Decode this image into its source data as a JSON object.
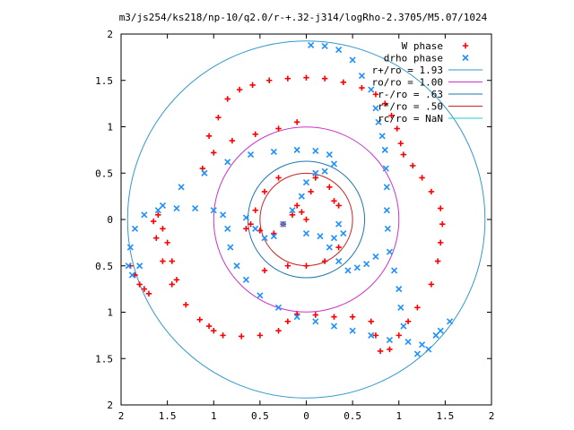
{
  "chart_data": {
    "type": "scatter",
    "title": "m3/js254/ks218/np-10/q2.0/r-+.32-j314/logRho-2.3705/M5.07/1024",
    "xlim": [
      -2,
      2
    ],
    "ylim": [
      -2,
      2
    ],
    "x_ticks": [
      "2",
      "1.5",
      "1",
      "0.5",
      "0",
      "0.5",
      "1",
      "1.5",
      "2"
    ],
    "x_tick_values": [
      -2,
      -1.5,
      -1,
      -0.5,
      0,
      0.5,
      1,
      1.5,
      2
    ],
    "y_ticks": [
      "2",
      "1.5",
      "1",
      "0.5",
      "0",
      "0.5",
      "1",
      "1.5",
      "2"
    ],
    "y_tick_values": [
      2,
      1.5,
      1,
      0.5,
      0,
      -0.5,
      -1,
      -1.5,
      -2
    ],
    "grid": false,
    "legend_position": "top-right",
    "legend": [
      {
        "label": "W phase",
        "kind": "point",
        "marker": "+",
        "color": "#ff0000"
      },
      {
        "label": "drho phase",
        "kind": "point",
        "marker": "x",
        "color": "#1e90ff"
      },
      {
        "label": "r+/ro = 1.93",
        "kind": "circle",
        "radius": 1.93,
        "color": "#3399cc"
      },
      {
        "label": "ro/ro = 1.00",
        "kind": "circle",
        "radius": 1.0,
        "color": "#cc33cc"
      },
      {
        "label": "r-/ro = .63",
        "kind": "circle",
        "radius": 0.63,
        "color": "#1f77b4"
      },
      {
        "label": "r*/ro = .50",
        "kind": "circle",
        "radius": 0.5,
        "color": "#cc2222"
      },
      {
        "label": "rc/ro = NaN",
        "kind": "line",
        "color": "#22cccc"
      }
    ],
    "series": [
      {
        "name": "W phase",
        "color": "#ff0000",
        "points": [
          [
            -0.1,
            1.05
          ],
          [
            -0.3,
            0.98
          ],
          [
            -0.55,
            0.92
          ],
          [
            -0.8,
            0.85
          ],
          [
            -1.0,
            0.72
          ],
          [
            -1.12,
            0.55
          ],
          [
            -1.05,
            0.9
          ],
          [
            -0.95,
            1.1
          ],
          [
            -0.85,
            1.3
          ],
          [
            -0.72,
            1.4
          ],
          [
            -0.58,
            1.45
          ],
          [
            -0.4,
            1.5
          ],
          [
            -0.2,
            1.52
          ],
          [
            0.0,
            1.53
          ],
          [
            0.2,
            1.52
          ],
          [
            0.4,
            1.48
          ],
          [
            0.6,
            1.42
          ],
          [
            0.75,
            1.35
          ],
          [
            0.85,
            1.25
          ],
          [
            0.92,
            1.12
          ],
          [
            0.98,
            0.98
          ],
          [
            1.02,
            0.82
          ],
          [
            1.05,
            0.7
          ],
          [
            1.15,
            0.58
          ],
          [
            1.25,
            0.45
          ],
          [
            1.35,
            0.3
          ],
          [
            1.45,
            0.12
          ],
          [
            1.47,
            -0.05
          ],
          [
            1.45,
            -0.25
          ],
          [
            1.42,
            -0.45
          ],
          [
            1.35,
            -0.7
          ],
          [
            1.2,
            -0.95
          ],
          [
            1.1,
            -1.1
          ],
          [
            1.0,
            -1.25
          ],
          [
            0.9,
            -1.4
          ],
          [
            0.8,
            -1.42
          ],
          [
            0.75,
            -1.25
          ],
          [
            0.7,
            -1.1
          ],
          [
            0.5,
            -1.05
          ],
          [
            0.3,
            -1.05
          ],
          [
            0.1,
            -1.03
          ],
          [
            -0.1,
            -1.02
          ],
          [
            -0.2,
            -1.1
          ],
          [
            -0.3,
            -1.2
          ],
          [
            -0.5,
            -1.25
          ],
          [
            -0.7,
            -1.26
          ],
          [
            -0.9,
            -1.25
          ],
          [
            -1.0,
            -1.2
          ],
          [
            -1.05,
            -1.15
          ],
          [
            -1.15,
            -1.08
          ],
          [
            -1.3,
            -0.92
          ],
          [
            -1.45,
            -0.7
          ],
          [
            -1.55,
            -0.45
          ],
          [
            -1.62,
            -0.2
          ],
          [
            -1.65,
            -0.02
          ],
          [
            -1.6,
            0.05
          ],
          [
            -1.55,
            -0.1
          ],
          [
            -1.5,
            -0.25
          ],
          [
            -1.45,
            -0.45
          ],
          [
            -1.4,
            -0.65
          ],
          [
            -1.9,
            -0.5
          ],
          [
            -1.85,
            -0.6
          ],
          [
            -1.8,
            -0.7
          ],
          [
            -1.75,
            -0.75
          ],
          [
            -1.7,
            -0.8
          ],
          [
            -0.3,
            0.45
          ],
          [
            -0.45,
            0.3
          ],
          [
            -0.55,
            0.1
          ],
          [
            -0.6,
            -0.05
          ],
          [
            -0.65,
            -0.1
          ],
          [
            -0.5,
            -0.12
          ],
          [
            -0.35,
            -0.15
          ],
          [
            -0.25,
            -0.05
          ],
          [
            -0.15,
            0.05
          ],
          [
            -0.1,
            0.15
          ],
          [
            -0.05,
            0.08
          ],
          [
            0.0,
            0.0
          ],
          [
            0.05,
            0.3
          ],
          [
            0.1,
            0.45
          ],
          [
            0.25,
            0.35
          ],
          [
            0.3,
            0.2
          ],
          [
            0.35,
            0.15
          ],
          [
            -0.45,
            -0.55
          ],
          [
            -0.2,
            -0.5
          ],
          [
            0.0,
            -0.5
          ],
          [
            0.2,
            -0.45
          ],
          [
            0.35,
            -0.3
          ]
        ]
      },
      {
        "name": "drho phase",
        "color": "#1e90ff",
        "points": [
          [
            0.05,
            1.88
          ],
          [
            0.2,
            1.87
          ],
          [
            0.35,
            1.83
          ],
          [
            0.5,
            1.72
          ],
          [
            0.6,
            1.55
          ],
          [
            0.7,
            1.4
          ],
          [
            0.75,
            1.2
          ],
          [
            0.78,
            1.05
          ],
          [
            0.82,
            0.9
          ],
          [
            0.85,
            0.75
          ],
          [
            0.86,
            0.55
          ],
          [
            0.87,
            0.35
          ],
          [
            0.87,
            0.1
          ],
          [
            0.88,
            -0.1
          ],
          [
            0.9,
            -0.35
          ],
          [
            0.95,
            -0.55
          ],
          [
            1.0,
            -0.75
          ],
          [
            1.02,
            -0.95
          ],
          [
            1.05,
            -1.15
          ],
          [
            1.1,
            -1.32
          ],
          [
            1.25,
            -1.35
          ],
          [
            1.4,
            -1.25
          ],
          [
            1.55,
            -1.1
          ],
          [
            1.45,
            -1.2
          ],
          [
            1.32,
            -1.4
          ],
          [
            1.2,
            -1.45
          ],
          [
            0.9,
            -1.3
          ],
          [
            0.7,
            -1.25
          ],
          [
            0.5,
            -1.2
          ],
          [
            0.3,
            -1.15
          ],
          [
            0.1,
            -1.1
          ],
          [
            -0.1,
            -1.05
          ],
          [
            -0.3,
            -0.95
          ],
          [
            -0.5,
            -0.82
          ],
          [
            -0.65,
            -0.65
          ],
          [
            -0.75,
            -0.5
          ],
          [
            -0.82,
            -0.3
          ],
          [
            -0.85,
            -0.1
          ],
          [
            -0.9,
            0.05
          ],
          [
            -1.0,
            0.1
          ],
          [
            -1.2,
            0.12
          ],
          [
            -1.4,
            0.12
          ],
          [
            -1.6,
            0.1
          ],
          [
            -1.75,
            0.05
          ],
          [
            -1.85,
            -0.1
          ],
          [
            -1.9,
            -0.3
          ],
          [
            -1.92,
            -0.5
          ],
          [
            -1.88,
            -0.6
          ],
          [
            -1.8,
            -0.5
          ],
          [
            -1.55,
            0.15
          ],
          [
            -1.35,
            0.35
          ],
          [
            -1.1,
            0.5
          ],
          [
            -0.85,
            0.62
          ],
          [
            -0.6,
            0.7
          ],
          [
            -0.35,
            0.73
          ],
          [
            -0.1,
            0.75
          ],
          [
            0.1,
            0.74
          ],
          [
            0.25,
            0.7
          ],
          [
            0.3,
            0.6
          ],
          [
            -0.65,
            0.02
          ],
          [
            -0.55,
            -0.1
          ],
          [
            -0.45,
            -0.2
          ],
          [
            -0.35,
            -0.18
          ],
          [
            -0.25,
            -0.05
          ],
          [
            -0.15,
            0.1
          ],
          [
            -0.05,
            0.25
          ],
          [
            0.0,
            0.4
          ],
          [
            0.1,
            0.5
          ],
          [
            0.2,
            0.52
          ],
          [
            0.0,
            -0.15
          ],
          [
            0.15,
            -0.18
          ],
          [
            0.3,
            -0.2
          ],
          [
            0.4,
            -0.15
          ],
          [
            0.35,
            -0.05
          ],
          [
            0.25,
            -0.3
          ],
          [
            0.35,
            -0.45
          ],
          [
            0.45,
            -0.55
          ],
          [
            0.55,
            -0.52
          ],
          [
            0.65,
            -0.48
          ],
          [
            0.75,
            -0.4
          ]
        ]
      }
    ]
  }
}
